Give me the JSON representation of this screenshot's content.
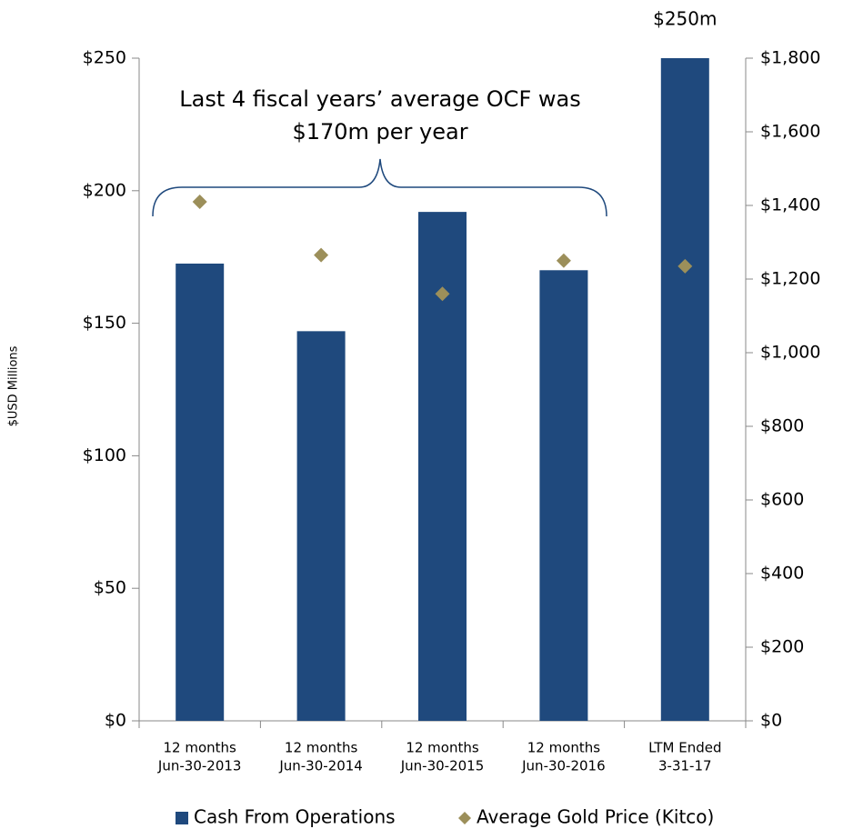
{
  "chart_data": {
    "type": "bar",
    "categories": [
      [
        "12 months",
        "Jun-30-2013"
      ],
      [
        "12 months",
        "Jun-30-2014"
      ],
      [
        "12 months",
        "Jun-30-2015"
      ],
      [
        "12 months",
        "Jun-30-2016"
      ],
      [
        "LTM Ended",
        "3-31-17"
      ]
    ],
    "series": [
      {
        "name": "Cash From Operations",
        "color": "#1f497d",
        "type": "bar",
        "values": [
          172.5,
          147,
          192,
          170,
          250
        ],
        "value_labels": [
          null,
          null,
          null,
          null,
          "$250m"
        ]
      },
      {
        "name": "Average Gold Price (Kitco)",
        "color": "#9c8f5a",
        "type": "scatter",
        "axis": "y2",
        "values": [
          1410,
          1265,
          1160,
          1250,
          1235
        ]
      }
    ],
    "ylabel": "$USD Millions",
    "ylim": [
      0,
      250
    ],
    "yticks": [
      {
        "value": 0,
        "label": "$0"
      },
      {
        "value": 50,
        "label": "$50"
      },
      {
        "value": 100,
        "label": "$100"
      },
      {
        "value": 150,
        "label": "$150"
      },
      {
        "value": 200,
        "label": "$200"
      },
      {
        "value": 250,
        "label": "$250"
      }
    ],
    "y2lim": [
      0,
      1800
    ],
    "y2ticks": [
      {
        "value": 0,
        "label": "$0"
      },
      {
        "value": 200,
        "label": "$200"
      },
      {
        "value": 400,
        "label": "$400"
      },
      {
        "value": 600,
        "label": "$600"
      },
      {
        "value": 800,
        "label": "$800"
      },
      {
        "value": 1000,
        "label": "$1,000"
      },
      {
        "value": 1200,
        "label": "$1,200"
      },
      {
        "value": 1400,
        "label": "$1,400"
      },
      {
        "value": 1600,
        "label": "$1,600"
      },
      {
        "value": 1800,
        "label": "$1,800"
      }
    ],
    "annotation": [
      "Last  4 fiscal years’ average OCF was",
      "$170m per year"
    ],
    "legend": "bottom"
  }
}
